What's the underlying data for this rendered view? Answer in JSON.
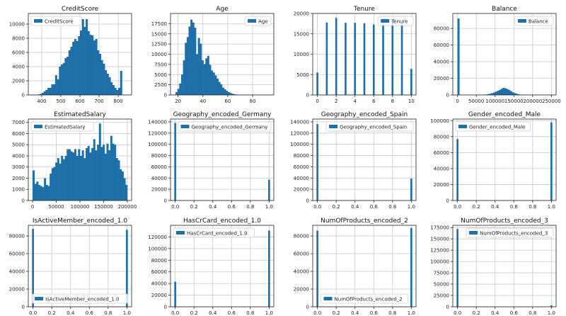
{
  "figure": {
    "bar_color": "#1f6fa8",
    "grid_color": "#c8c8c8"
  },
  "chart_data": [
    {
      "type": "bar",
      "title": "CreditScore",
      "legend": [
        "CreditScore"
      ],
      "legend_placement": "upper left",
      "grid": true,
      "xlim": [
        330,
        870
      ],
      "ylim": [
        0,
        11500
      ],
      "xticks": [
        400,
        500,
        600,
        700,
        800
      ],
      "yticks": [
        0,
        2000,
        4000,
        6000,
        8000,
        10000
      ],
      "bin_start": 350,
      "bin_width": 10,
      "values": [
        10,
        20,
        40,
        80,
        150,
        300,
        500,
        700,
        1000,
        1000,
        1500,
        1500,
        2800,
        2200,
        4000,
        4300,
        4500,
        5200,
        5400,
        6300,
        6800,
        7500,
        7900,
        7600,
        8300,
        9100,
        10700,
        9600,
        10700,
        9000,
        8500,
        8400,
        7700,
        7900,
        6300,
        5800,
        4900,
        4400,
        3500,
        3000,
        2500,
        1800,
        1400,
        1000,
        700,
        1000,
        3400
      ]
    },
    {
      "type": "bar",
      "title": "Age",
      "legend": [
        "Age"
      ],
      "legend_placement": "upper right",
      "grid": true,
      "xlim": [
        14,
        97
      ],
      "ylim": [
        0,
        20000
      ],
      "xticks": [
        20,
        40,
        60,
        80
      ],
      "yticks": [
        0,
        2500,
        5000,
        7500,
        10000,
        12500,
        15000,
        17500
      ],
      "bin_start": 18,
      "bin_width": 1.5,
      "values": [
        700,
        1500,
        2800,
        5000,
        8500,
        12800,
        14200,
        16800,
        18500,
        17800,
        16500,
        10000,
        14000,
        12600,
        8500,
        7600,
        9000,
        9600,
        7400,
        6000,
        5500,
        4800,
        4000,
        3200,
        2600,
        1800,
        1400,
        1000,
        700,
        500,
        300,
        200,
        120,
        80,
        50,
        30,
        20,
        10,
        10,
        10,
        5,
        5,
        5,
        3,
        3,
        2,
        2,
        2,
        1,
        1
      ]
    },
    {
      "type": "bar",
      "title": "Tenure",
      "legend": [
        "Tenure"
      ],
      "legend_placement": "upper right",
      "grid": true,
      "xlim": [
        -0.5,
        10.5
      ],
      "ylim": [
        0,
        20000
      ],
      "xticks": [
        0,
        2,
        4,
        6,
        8,
        10
      ],
      "yticks": [
        0,
        5000,
        10000,
        15000,
        20000
      ],
      "bar_width": 0.2,
      "x": [
        0,
        1,
        2,
        3,
        4,
        5,
        6,
        7,
        8,
        9,
        10
      ],
      "values": [
        5500,
        17800,
        18900,
        17700,
        17700,
        17600,
        17300,
        18800,
        18600,
        17700,
        6400
      ]
    },
    {
      "type": "bar",
      "title": "Balance",
      "legend": [
        "Balance"
      ],
      "legend_placement": "upper right",
      "grid": true,
      "xlim": [
        -12500,
        262500
      ],
      "ylim": [
        0,
        98000
      ],
      "xticks": [
        0,
        50000,
        100000,
        150000,
        200000,
        250000
      ],
      "yticks": [
        0,
        20000,
        40000,
        60000,
        80000
      ],
      "bin_start": 0,
      "bin_width": 5000,
      "values": [
        92000,
        0,
        0,
        0,
        0,
        0,
        0,
        0,
        0,
        0,
        0,
        0,
        0,
        100,
        300,
        600,
        1000,
        1500,
        2200,
        3000,
        4000,
        5000,
        6000,
        7500,
        8500,
        8000,
        7200,
        6000,
        4600,
        3200,
        2200,
        1400,
        800,
        400,
        200,
        100,
        50,
        30,
        20,
        10,
        10,
        5,
        5,
        5,
        3,
        2,
        2,
        1,
        1,
        1
      ]
    },
    {
      "type": "bar",
      "title": "EstimatedSalary",
      "legend": [
        "EstimatedSalary"
      ],
      "legend_placement": "upper left",
      "grid": true,
      "xlim": [
        -9000,
        209000
      ],
      "ylim": [
        0,
        7300
      ],
      "xticks": [
        0,
        50000,
        100000,
        150000,
        200000
      ],
      "yticks": [
        0,
        1000,
        2000,
        3000,
        4000,
        5000,
        6000,
        7000
      ],
      "bin_start": 0,
      "bin_width": 4000,
      "values": [
        2700,
        1500,
        1700,
        1400,
        1300,
        1200,
        2000,
        1400,
        1300,
        2400,
        2900,
        3000,
        3400,
        3800,
        3300,
        4000,
        3700,
        4000,
        4600,
        4600,
        4400,
        4300,
        4600,
        4000,
        4600,
        4000,
        4500,
        3800,
        4700,
        4900,
        4300,
        4700,
        5500,
        4500,
        5000,
        6900,
        4800,
        5000,
        4200,
        5100,
        4500,
        5800,
        5100,
        5000,
        3800,
        3600,
        2800,
        2600,
        2000,
        1400
      ]
    },
    {
      "type": "bar",
      "title": "Geography_encoded_Germany",
      "legend": [
        "Geography_encoded_Germany"
      ],
      "legend_placement": "upper right",
      "grid": true,
      "xlim": [
        -0.05,
        1.05
      ],
      "ylim": [
        0,
        145000
      ],
      "xticks": [
        0.0,
        0.2,
        0.4,
        0.6,
        0.8,
        1.0
      ],
      "yticks": [
        0,
        20000,
        40000,
        60000,
        80000,
        100000,
        120000,
        140000
      ],
      "bar_width": 0.02,
      "x": [
        0,
        1
      ],
      "values": [
        138000,
        37000
      ]
    },
    {
      "type": "bar",
      "title": "Geography_encoded_Spain",
      "legend": [
        "Geography_encoded_Spain"
      ],
      "legend_placement": "upper right",
      "grid": true,
      "xlim": [
        -0.05,
        1.05
      ],
      "ylim": [
        0,
        145000
      ],
      "xticks": [
        0.0,
        0.2,
        0.4,
        0.6,
        0.8,
        1.0
      ],
      "yticks": [
        0,
        20000,
        40000,
        60000,
        80000,
        100000,
        120000,
        140000
      ],
      "bar_width": 0.02,
      "x": [
        0,
        1
      ],
      "values": [
        136000,
        39000
      ]
    },
    {
      "type": "bar",
      "title": "Gender_encoded_Male",
      "legend": [
        "Gender_encoded_Male"
      ],
      "legend_placement": "upper left",
      "grid": true,
      "xlim": [
        -0.05,
        1.05
      ],
      "ylim": [
        0,
        102000
      ],
      "xticks": [
        0.0,
        0.2,
        0.4,
        0.6,
        0.8,
        1.0
      ],
      "yticks": [
        0,
        20000,
        40000,
        60000,
        80000,
        100000
      ],
      "bar_width": 0.02,
      "x": [
        0,
        1
      ],
      "values": [
        77000,
        98000
      ]
    },
    {
      "type": "bar",
      "title": "IsActiveMember_encoded_1.0",
      "legend": [
        "IsActiveMember_encoded_1.0"
      ],
      "legend_placement": "lower center",
      "grid": true,
      "xlim": [
        -0.05,
        1.05
      ],
      "ylim": [
        0,
        92000
      ],
      "xticks": [
        0.0,
        0.2,
        0.4,
        0.6,
        0.8,
        1.0
      ],
      "yticks": [
        0,
        20000,
        40000,
        60000,
        80000
      ],
      "bar_width": 0.02,
      "x": [
        0,
        1
      ],
      "values": [
        88000,
        87000
      ]
    },
    {
      "type": "bar",
      "title": "HasCrCard_encoded_1.0",
      "legend": [
        "HasCrCard_encoded_1.0"
      ],
      "legend_placement": "upper left",
      "grid": true,
      "xlim": [
        -0.05,
        1.05
      ],
      "ylim": [
        0,
        140000
      ],
      "xticks": [
        0.0,
        0.2,
        0.4,
        0.6,
        0.8,
        1.0
      ],
      "yticks": [
        0,
        20000,
        40000,
        60000,
        80000,
        100000,
        120000
      ],
      "bar_width": 0.02,
      "x": [
        0,
        1
      ],
      "values": [
        43000,
        131000
      ]
    },
    {
      "type": "bar",
      "title": "NumOfProducts_encoded_2",
      "legend": [
        "NumOfProducts_encoded_2"
      ],
      "legend_placement": "lower center",
      "grid": true,
      "xlim": [
        -0.05,
        1.05
      ],
      "ylim": [
        0,
        92000
      ],
      "xticks": [
        0.0,
        0.2,
        0.4,
        0.6,
        0.8,
        1.0
      ],
      "yticks": [
        0,
        20000,
        40000,
        60000,
        80000
      ],
      "bar_width": 0.02,
      "x": [
        0,
        1
      ],
      "values": [
        86000,
        89000
      ]
    },
    {
      "type": "bar",
      "title": "NumOfProducts_encoded_3",
      "legend": [
        "NumOfProducts_encoded_3"
      ],
      "legend_placement": "upper right",
      "grid": true,
      "xlim": [
        -0.05,
        1.05
      ],
      "ylim": [
        0,
        180000
      ],
      "xticks": [
        0.0,
        0.2,
        0.4,
        0.6,
        0.8,
        1.0
      ],
      "yticks": [
        0,
        25000,
        50000,
        75000,
        100000,
        125000,
        150000,
        175000
      ],
      "bar_width": 0.02,
      "x": [
        0,
        1
      ],
      "values": [
        172000,
        3000
      ]
    }
  ]
}
